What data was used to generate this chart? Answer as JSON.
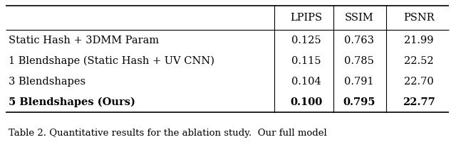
{
  "headers": [
    "LPIPS",
    "SSIM",
    "PSNR"
  ],
  "rows": [
    [
      "Static Hash + 3DMM Param",
      "0.125",
      "0.763",
      "21.99"
    ],
    [
      "1 Blendshape (Static Hash + UV CNN)",
      "0.115",
      "0.785",
      "22.52"
    ],
    [
      "3 Blendshapes",
      "0.104",
      "0.791",
      "22.70"
    ],
    [
      "5 Blendshapes (Ours)",
      "0.100",
      "0.795",
      "22.77"
    ]
  ],
  "bold_row": 3,
  "caption": "Table 2. Quantitative results for the ablation study.  Our full model",
  "bg_color": "#ffffff",
  "font_size": 10.5,
  "caption_font_size": 9.5
}
